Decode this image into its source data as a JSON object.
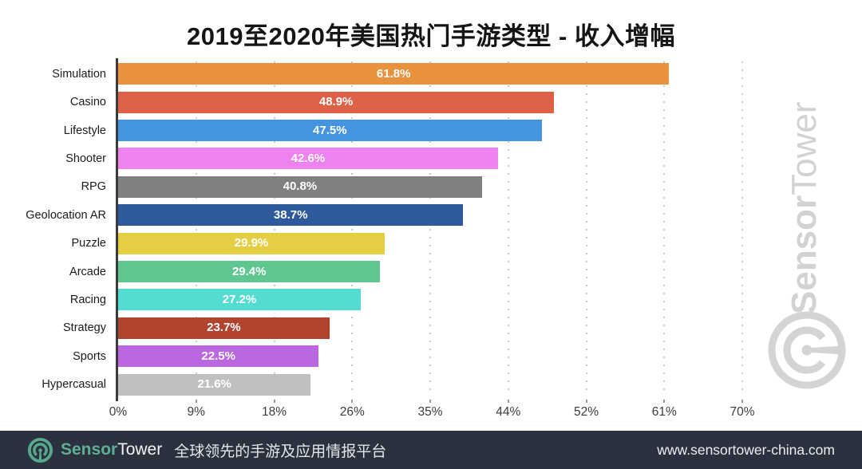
{
  "title": "2019至2020年美国热门手游类型 - 收入增幅",
  "chart_data": {
    "type": "bar",
    "orientation": "horizontal",
    "title": "2019至2020年美国热门手游类型 - 收入增幅",
    "categories": [
      "Simulation",
      "Casino",
      "Lifestyle",
      "Shooter",
      "RPG",
      "Geolocation AR",
      "Puzzle",
      "Arcade",
      "Racing",
      "Strategy",
      "Sports",
      "Hypercasual"
    ],
    "values": [
      61.8,
      48.9,
      47.5,
      42.6,
      40.8,
      38.7,
      29.9,
      29.4,
      27.2,
      23.7,
      22.5,
      21.6
    ],
    "value_labels": [
      "61.8%",
      "48.9%",
      "47.5%",
      "42.6%",
      "40.8%",
      "38.7%",
      "29.9%",
      "29.4%",
      "27.2%",
      "23.7%",
      "22.5%",
      "21.6%"
    ],
    "bar_colors": [
      "#e8923d",
      "#dc6147",
      "#4594e0",
      "#ee82ee",
      "#808080",
      "#2e599c",
      "#e5ce43",
      "#5fc690",
      "#55dcd2",
      "#b2432f",
      "#bb68e0",
      "#c0c0c0"
    ],
    "x_ticks": [
      "0%",
      "9%",
      "18%",
      "26%",
      "35%",
      "44%",
      "52%",
      "61%",
      "70%"
    ],
    "xlabel": "",
    "ylabel": "",
    "xlim": [
      0,
      70
    ],
    "grid": "dotted-vertical",
    "legend": "none",
    "value_label_color": "#ffffff"
  },
  "watermark": {
    "brand_bold": "Sensor",
    "brand_light": "Tower",
    "logo_icon": "sensortower-logo-icon",
    "color": "#d2d2d2"
  },
  "footer": {
    "brand_bold": "Sensor",
    "brand_light": "Tower",
    "tagline": "全球领先的手游及应用情报平台",
    "url": "www.sensortower-china.com",
    "background": "#2b313f",
    "accent": "#5fae96"
  }
}
